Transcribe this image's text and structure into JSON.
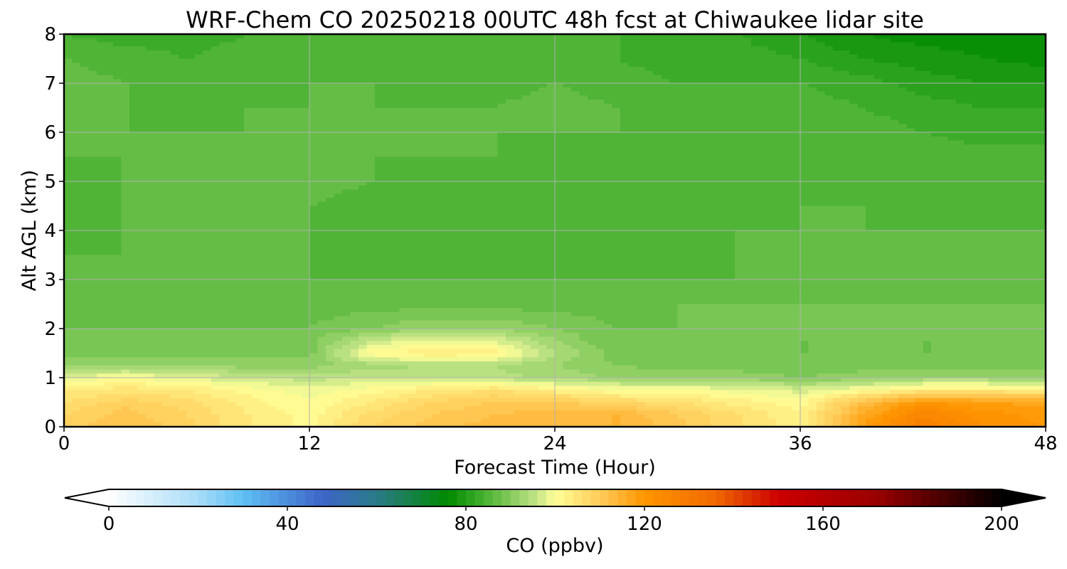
{
  "chart_data": {
    "type": "heatmap",
    "title": "WRF-Chem CO  20250218 00UTC 48h fcst at Chiwaukee lidar site",
    "xlabel": "Forecast Time (Hour)",
    "ylabel": "Alt AGL (km)",
    "x_ticks": [
      "0",
      "12",
      "24",
      "36",
      "48"
    ],
    "y_ticks": [
      "0",
      "1",
      "2",
      "3",
      "4",
      "5",
      "6",
      "7",
      "8"
    ],
    "xlim": [
      0,
      48
    ],
    "ylim": [
      0,
      8
    ],
    "grid": true,
    "x_hours": [
      0,
      3,
      6,
      9,
      12,
      15,
      18,
      21,
      24,
      27,
      30,
      33,
      36,
      39,
      42,
      45,
      48
    ],
    "y_km": [
      0,
      0.25,
      0.5,
      0.75,
      1.0,
      1.25,
      1.5,
      1.75,
      2.0,
      2.5,
      3.0,
      3.5,
      4.0,
      4.5,
      5.0,
      5.5,
      6.0,
      6.5,
      7.0,
      7.5,
      8.0
    ],
    "co_ppbv": [
      [
        109,
        112,
        109,
        104,
        101,
        108,
        111,
        113,
        114,
        114,
        111,
        106,
        103,
        118,
        128,
        122,
        120
      ],
      [
        108,
        111,
        108,
        104,
        101,
        107,
        110,
        112,
        113,
        114,
        110,
        106,
        102,
        116,
        126,
        121,
        119
      ],
      [
        106,
        109,
        107,
        103,
        100,
        104,
        108,
        110,
        110,
        108,
        106,
        103,
        101,
        112,
        120,
        118,
        117
      ],
      [
        104,
        105,
        104,
        101,
        99,
        101,
        104,
        106,
        103,
        100,
        100,
        99,
        97,
        100,
        104,
        104,
        103
      ],
      [
        98,
        100,
        98,
        96,
        95,
        96,
        96,
        95,
        93,
        92,
        91,
        91,
        90,
        91,
        92,
        92,
        92
      ],
      [
        92,
        92,
        92,
        91,
        91,
        93,
        94,
        94,
        92,
        90,
        89,
        89,
        89,
        89,
        89,
        89,
        89
      ],
      [
        89,
        89,
        89,
        89,
        89,
        101,
        104,
        103,
        94,
        89,
        88,
        88,
        88,
        88,
        88,
        88,
        88
      ],
      [
        89,
        88,
        88,
        88,
        89,
        96,
        99,
        98,
        92,
        88,
        88,
        88,
        88,
        88,
        88,
        88,
        88
      ],
      [
        88,
        88,
        88,
        88,
        88,
        90,
        92,
        92,
        90,
        88,
        88,
        89,
        89,
        89,
        89,
        89,
        89
      ],
      [
        88,
        87,
        87,
        87,
        87,
        87,
        87,
        87,
        87,
        87,
        88,
        88,
        88,
        88,
        88,
        88,
        88
      ],
      [
        87,
        87,
        87,
        86,
        86,
        86,
        86,
        86,
        86,
        86,
        86,
        86,
        87,
        87,
        87,
        87,
        87
      ],
      [
        86,
        86,
        86,
        86,
        86,
        85,
        84,
        84,
        84,
        84,
        85,
        86,
        86,
        87,
        87,
        87,
        87
      ],
      [
        85,
        86,
        86,
        86,
        86,
        85,
        84,
        84,
        84,
        84,
        85,
        86,
        86,
        86,
        86,
        86,
        86
      ],
      [
        85,
        86,
        86,
        86,
        86,
        85,
        85,
        85,
        84,
        84,
        85,
        85,
        86,
        86,
        85,
        85,
        85
      ],
      [
        85,
        86,
        86,
        86,
        87,
        86,
        85,
        85,
        84,
        84,
        85,
        85,
        85,
        85,
        84,
        84,
        85
      ],
      [
        86,
        86,
        86,
        86,
        86,
        86,
        86,
        86,
        85,
        85,
        85,
        85,
        85,
        85,
        85,
        85,
        85
      ],
      [
        86,
        86,
        86,
        86,
        86,
        86,
        86,
        86,
        86,
        86,
        86,
        85,
        85,
        85,
        84,
        83,
        83
      ],
      [
        87,
        86,
        85,
        86,
        86,
        86,
        86,
        86,
        87,
        86,
        85,
        85,
        85,
        84,
        83,
        82,
        82
      ],
      [
        87,
        86,
        84,
        85,
        86,
        86,
        85,
        85,
        86,
        85,
        84,
        84,
        84,
        83,
        81,
        80,
        80
      ],
      [
        86,
        85,
        84,
        85,
        85,
        85,
        84,
        84,
        84,
        84,
        83,
        83,
        82,
        80,
        79,
        78,
        77
      ],
      [
        84,
        83,
        83,
        84,
        84,
        84,
        84,
        84,
        84,
        84,
        83,
        82,
        80,
        78,
        77,
        77,
        76
      ]
    ],
    "colorbar": {
      "label": "CO  (ppbv)",
      "ticks": [
        "0",
        "40",
        "80",
        "120",
        "160",
        "200"
      ],
      "min": 0,
      "max": 200,
      "step": 2,
      "extend": "both",
      "color_stops": [
        {
          "value": 0,
          "color": "#ffffff"
        },
        {
          "value": 20,
          "color": "#a8dcf8"
        },
        {
          "value": 30,
          "color": "#5fc0f4"
        },
        {
          "value": 48,
          "color": "#3d64c8"
        },
        {
          "value": 60,
          "color": "#2a7a88"
        },
        {
          "value": 76,
          "color": "#008a00"
        },
        {
          "value": 84,
          "color": "#45b030"
        },
        {
          "value": 96,
          "color": "#c5e588"
        },
        {
          "value": 100,
          "color": "#ffff99"
        },
        {
          "value": 112,
          "color": "#ffc14a"
        },
        {
          "value": 120,
          "color": "#ff9600"
        },
        {
          "value": 136,
          "color": "#f06800"
        },
        {
          "value": 150,
          "color": "#cc0000"
        },
        {
          "value": 172,
          "color": "#9a0000"
        },
        {
          "value": 200,
          "color": "#000000"
        }
      ]
    }
  }
}
